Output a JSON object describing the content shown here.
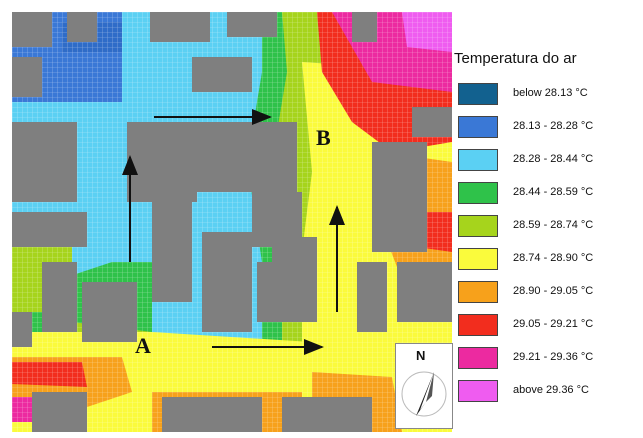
{
  "legend": {
    "title": "Temperatura do ar",
    "items": [
      {
        "label": "below 28.13 °C",
        "color": "#12618f"
      },
      {
        "label": "28.13 - 28.28 °C",
        "color": "#3a78d6"
      },
      {
        "label": "28.28 - 28.44 °C",
        "color": "#5bd0f3"
      },
      {
        "label": "28.44 - 28.59 °C",
        "color": "#2fc24a"
      },
      {
        "label": "28.59 - 28.74 °C",
        "color": "#a6d41c"
      },
      {
        "label": "28.74 - 28.90 °C",
        "color": "#fafb3c"
      },
      {
        "label": "28.90 - 29.05 °C",
        "color": "#f7a11b"
      },
      {
        "label": "29.05 - 29.21 °C",
        "color": "#f22d1e"
      },
      {
        "label": "29.21 - 29.36 °C",
        "color": "#ec2aa0"
      },
      {
        "label": "above 29.36 °C",
        "color": "#ef5cf0"
      }
    ]
  },
  "map": {
    "point_a": "A",
    "point_b": "B",
    "compass_north": "N",
    "building_color": "#7f7f7f"
  }
}
